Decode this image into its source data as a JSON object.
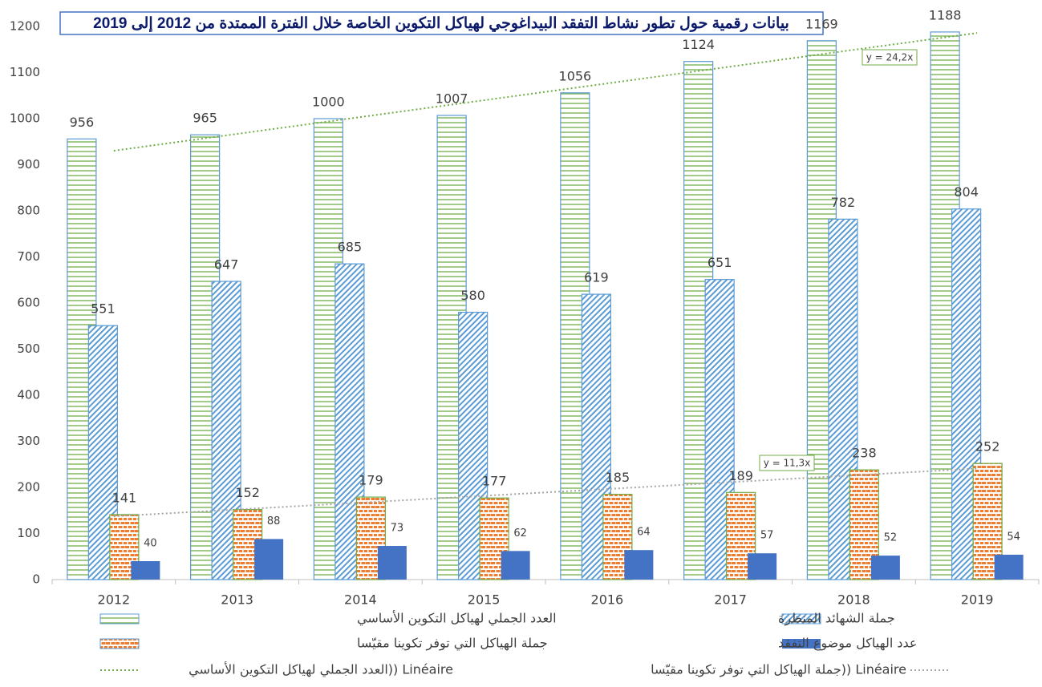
{
  "chart_data": {
    "type": "bar",
    "title": "بيانات رقمية حول تطور نشاط التفقد البيداغوجي لهياكل التكوين الخاصة خلال الفترة الممتدة من 2012 إلى 2019",
    "categories": [
      "2012",
      "2013",
      "2014",
      "2015",
      "2016",
      "2017",
      "2018",
      "2019"
    ],
    "series": [
      {
        "name": "العدد الجملي لهياكل التكوين الأساسي",
        "color": "#70ad47",
        "pattern": "horizontal",
        "values": [
          956,
          965,
          1000,
          1007,
          1056,
          1124,
          1169,
          1188
        ],
        "trendline": {
          "name": "العدد الجملي لهياكل التكوين الأساسي)) Linéaire",
          "equation": "y = 24,2x",
          "color": "#70ad47"
        }
      },
      {
        "name": "جملة الشهائد المنظرة",
        "color": "#5b9bd5",
        "pattern": "diagonal",
        "values": [
          551,
          647,
          685,
          580,
          619,
          651,
          782,
          804
        ]
      },
      {
        "name": "جملة الهياكل التي توفر تكوينا مقيّسا",
        "color": "#ed7d31",
        "pattern": "brick",
        "values": [
          141,
          152,
          179,
          177,
          185,
          189,
          238,
          252
        ],
        "trendline": {
          "name": "جملة الهياكل التي توفر تكوينا مقيّسا)) Linéaire",
          "equation": "y = 11,3x",
          "color": "#a5a5a5"
        }
      },
      {
        "name": "عدد الهياكل موضوع التفقد",
        "color": "#4472c4",
        "pattern": "solid",
        "values": [
          40,
          88,
          73,
          62,
          64,
          57,
          52,
          54
        ]
      }
    ],
    "ylim": [
      0,
      1200
    ],
    "yticks": [
      0,
      100,
      200,
      300,
      400,
      500,
      600,
      700,
      800,
      900,
      1000,
      1100,
      1200
    ],
    "grid": false
  }
}
